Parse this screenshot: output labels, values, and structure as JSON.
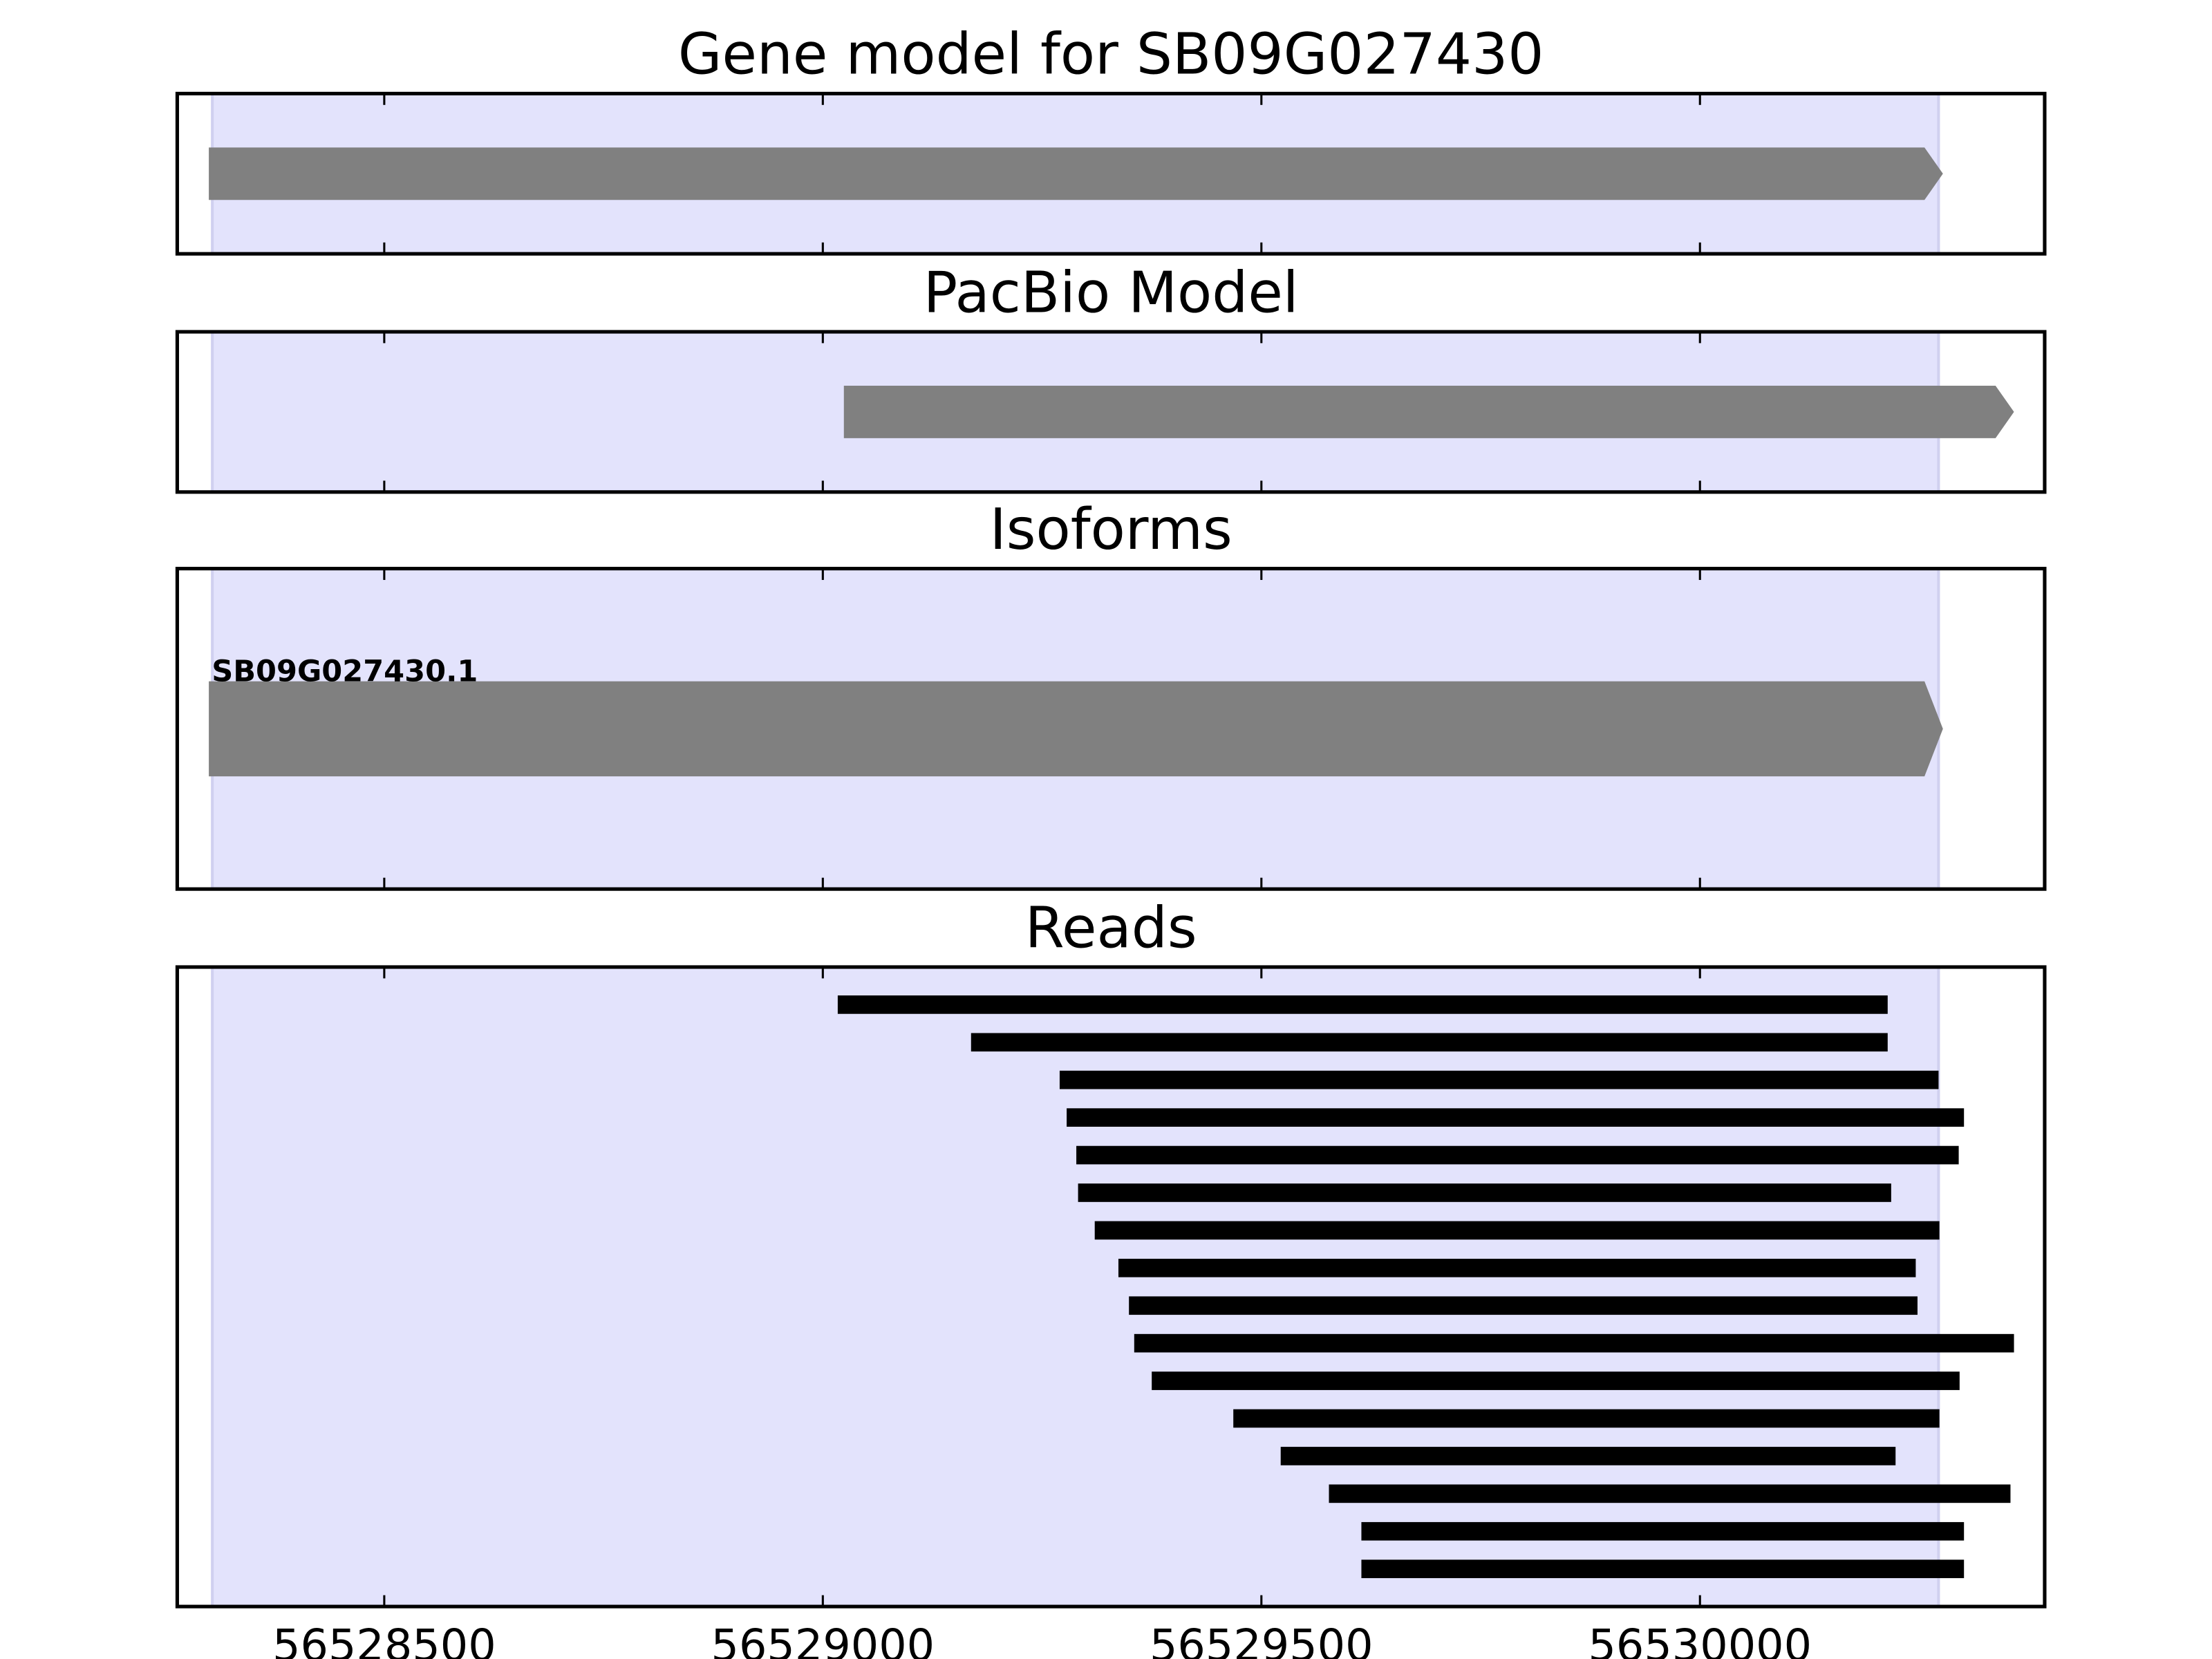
{
  "chart_data": [
    {
      "type": "gene-track",
      "title": "Gene model for SB09G027430",
      "xlim": [
        56528264,
        56530393
      ],
      "xticks": [
        56528500,
        56529000,
        56529500,
        56530000
      ],
      "highlight": [
        56528304,
        56530272
      ],
      "highlight_color": "#e3e3fc",
      "color": "#808080",
      "features": [
        {
          "start": 56528300,
          "end": 56530277
        }
      ]
    },
    {
      "type": "gene-track",
      "title": "PacBio Model",
      "xlim": [
        56528264,
        56530393
      ],
      "xticks": [
        56528500,
        56529000,
        56529500,
        56530000
      ],
      "highlight": [
        56528304,
        56530272
      ],
      "highlight_color": "#e3e3fc",
      "color": "#808080",
      "features": [
        {
          "start": 56529024,
          "end": 56530358
        }
      ]
    },
    {
      "type": "gene-track",
      "title": "Isoforms",
      "xlim": [
        56528264,
        56530393
      ],
      "xticks": [
        56528500,
        56529000,
        56529500,
        56530000
      ],
      "highlight": [
        56528304,
        56530272
      ],
      "highlight_color": "#e3e3fc",
      "color": "#808080",
      "features": [
        {
          "start": 56528300,
          "end": 56530277,
          "label": "SB09G027430.1"
        }
      ]
    },
    {
      "type": "reads",
      "title": "Reads",
      "xlim": [
        56528264,
        56530393
      ],
      "xticks": [
        56528500,
        56529000,
        56529500,
        56530000
      ],
      "highlight": [
        56528304,
        56530272
      ],
      "highlight_color": "#e3e3fc",
      "color": "#000000",
      "starts": [
        56529017,
        56529169,
        56529270,
        56529278,
        56529289,
        56529291,
        56529310,
        56529337,
        56529349,
        56529355,
        56529375,
        56529468,
        56529522,
        56529577,
        56529614,
        56529614
      ],
      "ends": [
        56530214,
        56530214,
        56530272,
        56530301,
        56530295,
        56530218,
        56530273,
        56530246,
        56530248,
        56530358,
        56530296,
        56530273,
        56530223,
        56530354,
        56530301,
        56530301
      ]
    }
  ]
}
